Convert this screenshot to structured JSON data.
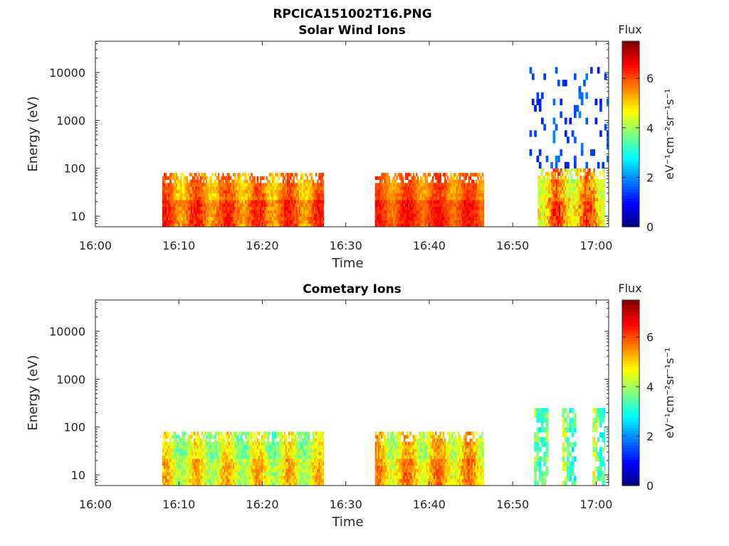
{
  "figure_title": "RPCICA151002T16.PNG",
  "colorbar_labels": {
    "title": "Flux",
    "unit": "eV⁻¹cm⁻²sr⁻¹s⁻¹"
  },
  "colors": {
    "colormap": "jet",
    "axis": "#262626",
    "background": "#ffffff"
  },
  "chart_data": [
    {
      "type": "heatmap",
      "title": "Solar Wind Ions",
      "xlabel": "Time",
      "ylabel": "Energy (eV)",
      "x_tick_labels": [
        "16:00",
        "16:10",
        "16:20",
        "16:30",
        "16:40",
        "16:50",
        "17:00"
      ],
      "x_tick_minutes": [
        0,
        10,
        20,
        30,
        40,
        50,
        60
      ],
      "xlim_minutes": [
        0,
        61.5
      ],
      "y_scale": "log",
      "ylim": [
        6,
        45000
      ],
      "y_tick_labels": [
        "10",
        "100",
        "1000",
        "10000"
      ],
      "y_tick_values": [
        10,
        100,
        1000,
        10000
      ],
      "colorbar": {
        "label": "Flux",
        "units": "eV⁻¹cm⁻²sr⁻¹s⁻¹",
        "range": [
          0,
          7.5
        ],
        "ticks": [
          0,
          2,
          4,
          6
        ]
      },
      "data_blocks": [
        {
          "t_start_min": 8,
          "t_end_min": 27.3,
          "e_min_eV": 6,
          "e_max_eV": 80,
          "typical_flux": [
            4.5,
            6.5
          ]
        },
        {
          "t_start_min": 33.5,
          "t_end_min": 46.5,
          "e_min_eV": 6,
          "e_max_eV": 80,
          "typical_flux": [
            5,
            6.5
          ]
        },
        {
          "t_start_min": 53,
          "t_end_min": 61,
          "e_min_eV": 6,
          "e_max_eV": 100,
          "typical_flux": [
            3.5,
            6.5
          ]
        },
        {
          "t_start_min": 52,
          "t_end_min": 61.5,
          "e_min_eV": 100,
          "e_max_eV": 13000,
          "typical_flux": [
            1,
            2
          ]
        }
      ]
    },
    {
      "type": "heatmap",
      "title": "Cometary Ions",
      "xlabel": "Time",
      "ylabel": "Energy (eV)",
      "x_tick_labels": [
        "16:00",
        "16:10",
        "16:20",
        "16:30",
        "16:40",
        "16:50",
        "17:00"
      ],
      "x_tick_minutes": [
        0,
        10,
        20,
        30,
        40,
        50,
        60
      ],
      "xlim_minutes": [
        0,
        61.5
      ],
      "y_scale": "log",
      "ylim": [
        6,
        45000
      ],
      "y_tick_labels": [
        "10",
        "100",
        "1000",
        "10000"
      ],
      "y_tick_values": [
        10,
        100,
        1000,
        10000
      ],
      "colorbar": {
        "label": "Flux",
        "units": "eV⁻¹cm⁻²sr⁻¹s⁻¹",
        "range": [
          0,
          7.5
        ],
        "ticks": [
          0,
          2,
          4,
          6
        ]
      },
      "data_blocks": [
        {
          "t_start_min": 8,
          "t_end_min": 27.3,
          "e_min_eV": 6,
          "e_max_eV": 80,
          "typical_flux": [
            3,
            5.5
          ]
        },
        {
          "t_start_min": 33.5,
          "t_end_min": 46.5,
          "e_min_eV": 6,
          "e_max_eV": 80,
          "typical_flux": [
            3.5,
            6
          ]
        },
        {
          "t_start_min": 52,
          "t_end_min": 61,
          "e_min_eV": 6,
          "e_max_eV": 250,
          "typical_flux": [
            2.5,
            5.5
          ]
        }
      ]
    }
  ]
}
